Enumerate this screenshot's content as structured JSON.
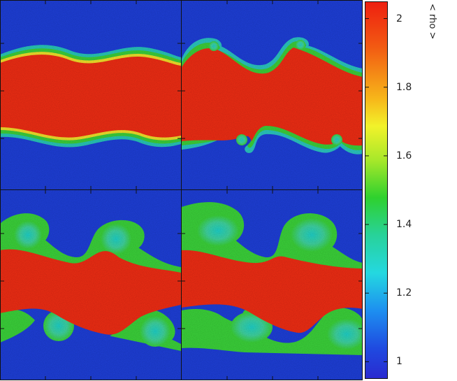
{
  "colorbar": {
    "label": "< rho >",
    "min": 0.95,
    "max": 2.05,
    "ticks": [
      {
        "value": 2,
        "label": "2"
      },
      {
        "value": 1.8,
        "label": "1.8"
      },
      {
        "value": 1.6,
        "label": "1.6"
      },
      {
        "value": 1.4,
        "label": "1.4"
      },
      {
        "value": 1.2,
        "label": "1.2"
      },
      {
        "value": 1,
        "label": "1"
      }
    ],
    "colors": {
      "low": "#1a33d6",
      "mid": "#22cc33",
      "high": "#ee2d14"
    }
  },
  "panels": [
    {
      "name": "panel-top-left",
      "stage": 1
    },
    {
      "name": "panel-top-right",
      "stage": 2
    },
    {
      "name": "panel-bottom-left",
      "stage": 3
    },
    {
      "name": "panel-bottom-right",
      "stage": 4
    }
  ]
}
